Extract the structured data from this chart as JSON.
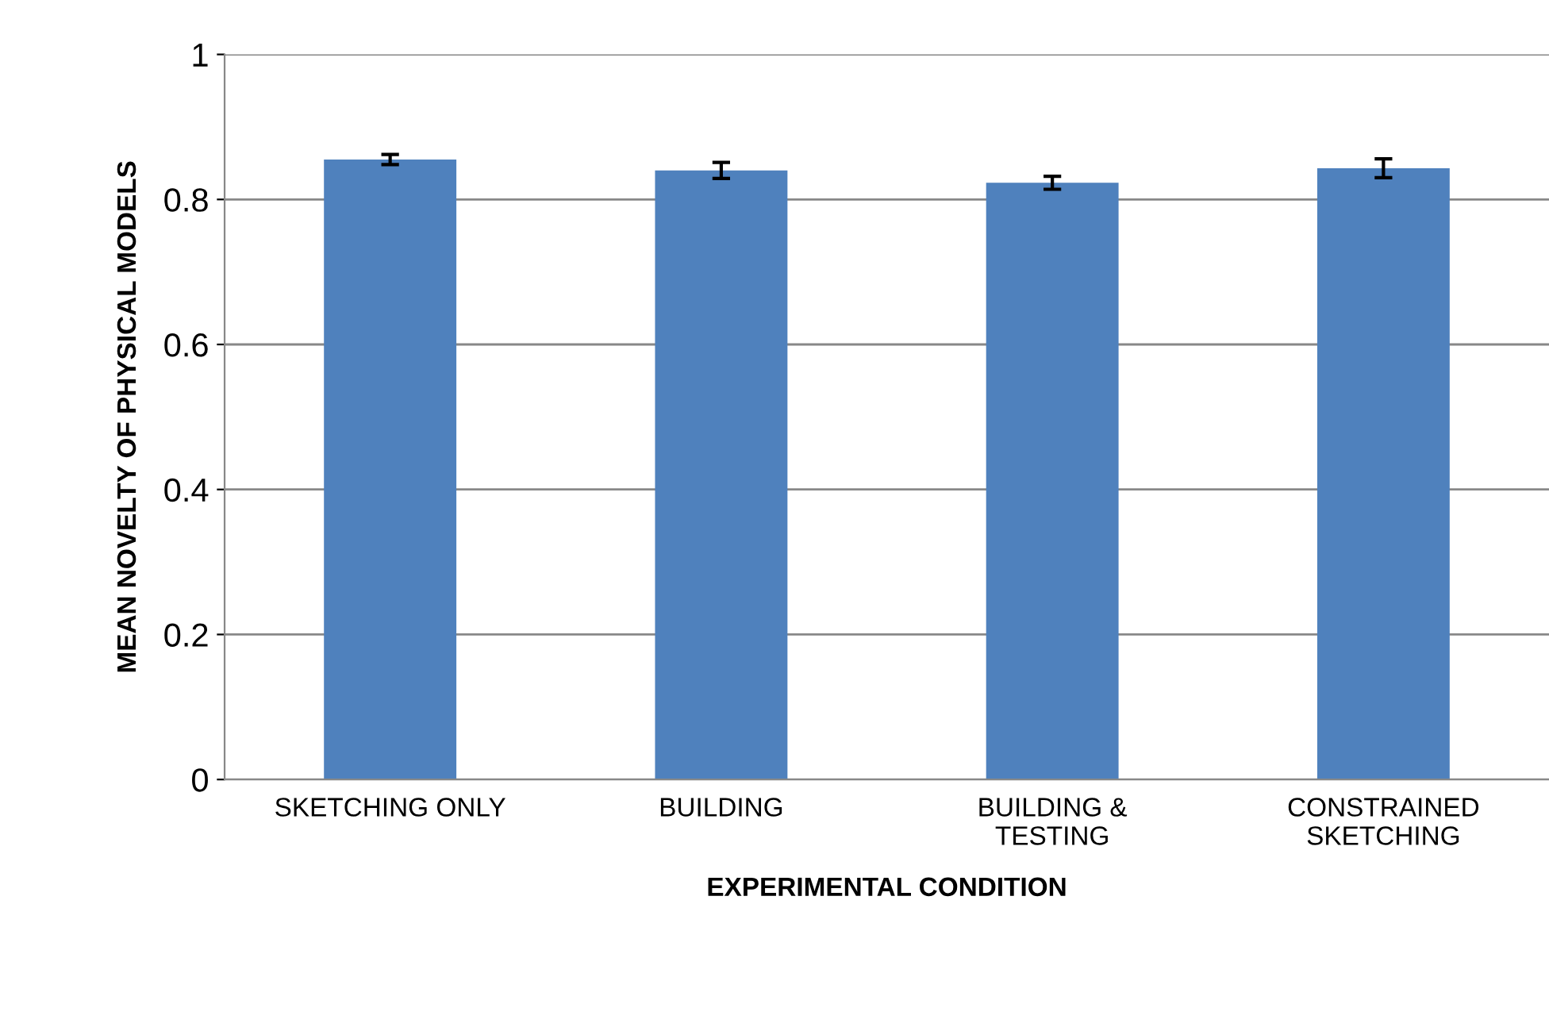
{
  "chart_data": {
    "type": "bar",
    "categories": [
      "SKETCHING ONLY",
      "BUILDING",
      "BUILDING &\nTESTING",
      "CONSTRAINED\nSKETCHING"
    ],
    "values": [
      0.855,
      0.84,
      0.823,
      0.843
    ],
    "errors": [
      0.007,
      0.011,
      0.009,
      0.013
    ],
    "color": "#4f81bd",
    "xlabel": "EXPERIMENTAL CONDITION",
    "ylabel": "MEAN NOVELTY OF PHYSICAL MODELS",
    "ylim": [
      0,
      1
    ],
    "yticks": [
      0,
      0.2,
      0.4,
      0.6,
      0.8,
      1
    ],
    "grid": "y"
  }
}
